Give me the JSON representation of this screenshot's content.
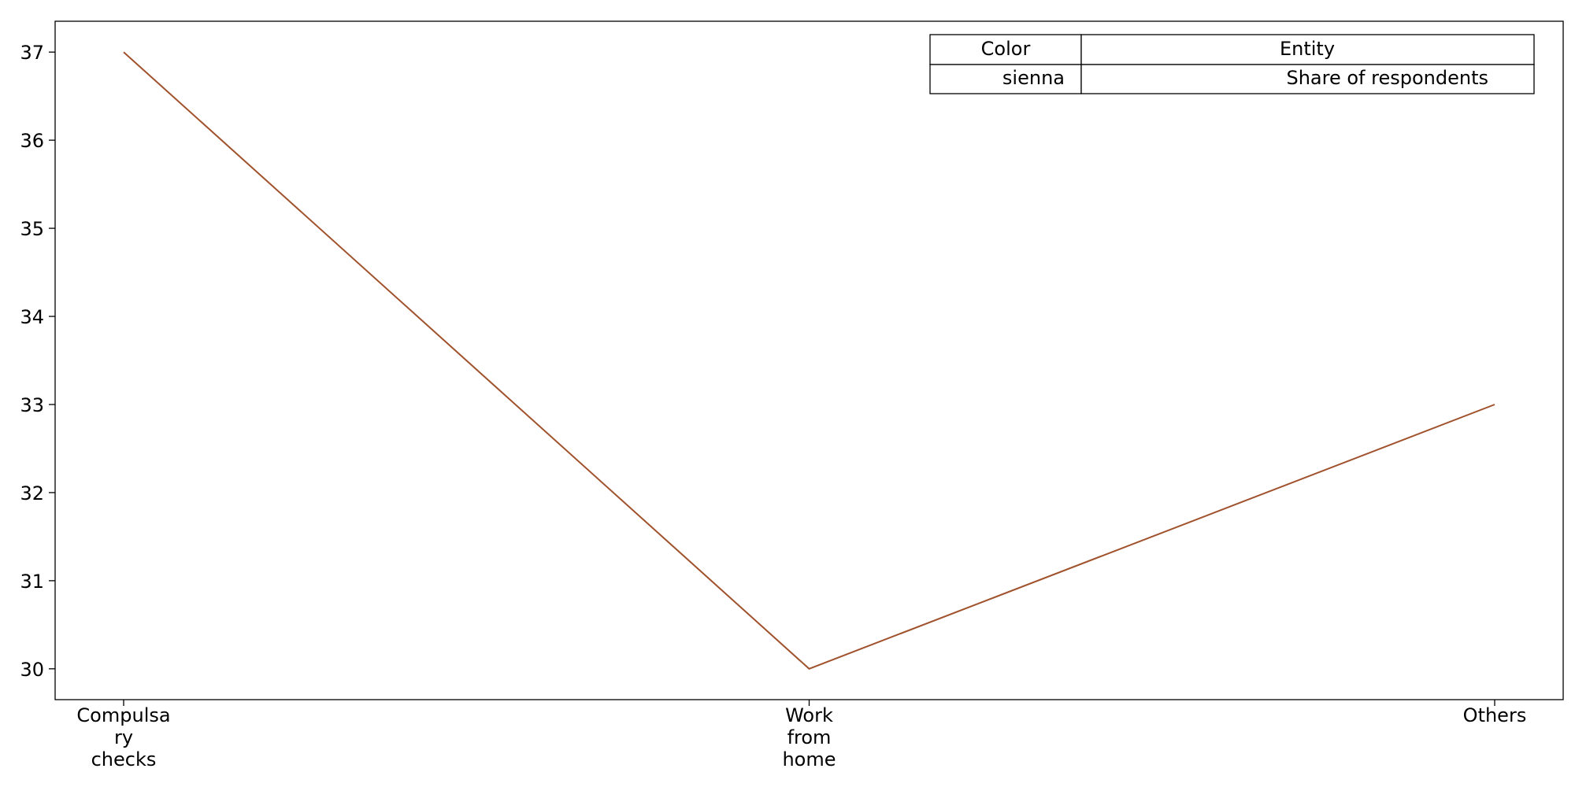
{
  "chart_data": {
    "type": "line",
    "categories": [
      "Compulsary checks",
      "Work from home",
      "Others"
    ],
    "category_label_lines": [
      [
        "Compulsa",
        "ry",
        "checks"
      ],
      [
        "Work",
        "from",
        "home"
      ],
      [
        "Others"
      ]
    ],
    "series": [
      {
        "name": "Share of respondents",
        "color": "#a0522d",
        "values": [
          37,
          30,
          33
        ]
      }
    ],
    "yticks": [
      30,
      31,
      32,
      33,
      34,
      35,
      36,
      37
    ],
    "ylim": [
      29.65,
      37.35
    ],
    "grid": false,
    "legend": {
      "placement": "top-right",
      "header": [
        "Color",
        "Entity"
      ],
      "rows": [
        [
          "sienna",
          "Share of respondents"
        ]
      ]
    }
  }
}
